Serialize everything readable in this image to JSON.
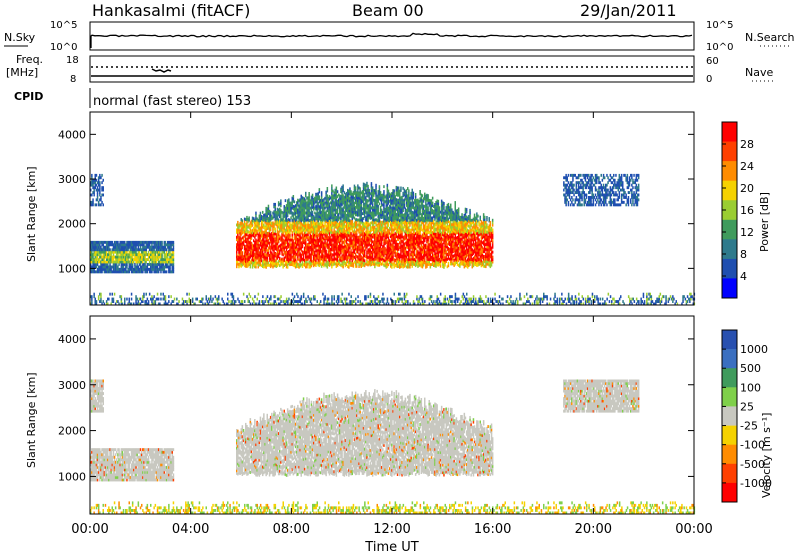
{
  "header": {
    "station": "Hankasalmi (fitACF)",
    "beam": "Beam 00",
    "date": "29/Jan/2011"
  },
  "status_panels": {
    "nsky_label": "N.Sky",
    "nsearch_label": "N.Search",
    "noise_ticks": [
      "10^5",
      "10^0"
    ],
    "freq_label": "Freq.",
    "freq_unit": "[MHz]",
    "freq_ticks": [
      "18",
      "8"
    ],
    "nave_ticks": [
      "60",
      "0"
    ],
    "nave_label": "Nave",
    "cpid_label": "CPID",
    "cpid_value": "normal (fast stereo) 153"
  },
  "chart_data": [
    {
      "type": "heatmap",
      "panel": "power",
      "ylabel": "Slant Range [km]",
      "y_ticks": [
        "1000",
        "2000",
        "3000",
        "4000"
      ],
      "ylim": [
        180,
        4500
      ],
      "xlim": [
        0,
        24
      ],
      "colorbar_label": "Power [dB]",
      "colorbar_ticks": [
        "4",
        "8",
        "12",
        "16",
        "20",
        "24",
        "28"
      ],
      "colorbar_range": [
        0,
        32
      ],
      "colors": [
        "#0000ff",
        "#1f4fb0",
        "#2e7a8c",
        "#3f9b5c",
        "#9acd32",
        "#f5d200",
        "#ff8c00",
        "#ff4000",
        "#ff0000"
      ],
      "regions": [
        {
          "t": [
            0.0,
            3.3
          ],
          "r": [
            900,
            1600
          ],
          "level": "mid"
        },
        {
          "t": [
            0.0,
            0.5
          ],
          "r": [
            2400,
            3100
          ],
          "level": "low"
        },
        {
          "t": [
            5.8,
            16.0
          ],
          "r": [
            1000,
            2900
          ],
          "level": "high"
        },
        {
          "t": [
            18.8,
            21.8
          ],
          "r": [
            2400,
            3100
          ],
          "level": "low"
        },
        {
          "t": [
            0.0,
            24.0
          ],
          "r": [
            180,
            450
          ],
          "level": "noise"
        }
      ]
    },
    {
      "type": "heatmap",
      "panel": "velocity",
      "ylabel": "Slant Range [km]",
      "y_ticks": [
        "1000",
        "2000",
        "3000",
        "4000"
      ],
      "ylim": [
        180,
        4500
      ],
      "xlim": [
        0,
        24
      ],
      "x_ticks": [
        "00:00",
        "04:00",
        "08:00",
        "12:00",
        "16:00",
        "20:00",
        "00:00"
      ],
      "xlabel": "Time UT",
      "colorbar_label": "Velocity [m s⁻¹]",
      "colorbar_ticks": [
        "1000",
        "500",
        "100",
        "25",
        "-25",
        "-100",
        "-500",
        "-1000"
      ],
      "colors": [
        "#2850b0",
        "#3a6fc0",
        "#3f9b5c",
        "#7fd04a",
        "#c8c8c0",
        "#f5d200",
        "#ff8c00",
        "#ff4000",
        "#ff0000"
      ],
      "regions": [
        {
          "t": [
            0.0,
            3.3
          ],
          "r": [
            900,
            1600
          ],
          "level": "ground"
        },
        {
          "t": [
            0.0,
            0.5
          ],
          "r": [
            2400,
            3100
          ],
          "level": "ground"
        },
        {
          "t": [
            5.8,
            16.0
          ],
          "r": [
            1000,
            2900
          ],
          "level": "ground"
        },
        {
          "t": [
            18.8,
            21.8
          ],
          "r": [
            2400,
            3100
          ],
          "level": "ground"
        },
        {
          "t": [
            0.0,
            24.0
          ],
          "r": [
            180,
            450
          ],
          "level": "noise"
        }
      ]
    }
  ]
}
